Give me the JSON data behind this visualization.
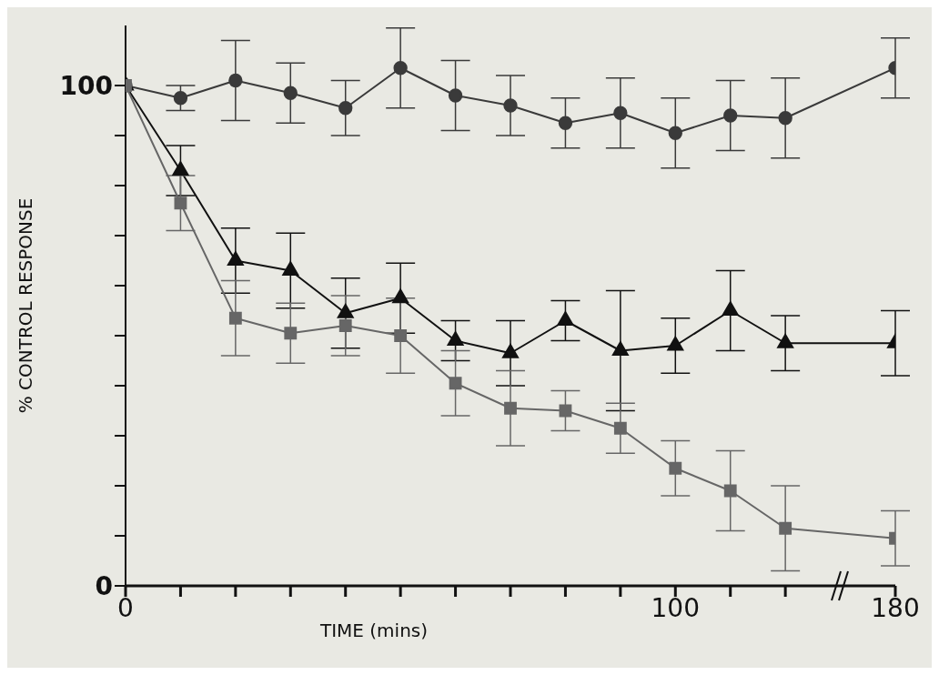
{
  "chart_data": {
    "type": "line",
    "xlabel": "TIME (mins)",
    "ylabel": "% CONTROL RESPONSE",
    "categories": [
      "0",
      null,
      null,
      null,
      null,
      null,
      null,
      null,
      null,
      null,
      "100",
      null,
      null,
      null,
      "180"
    ],
    "ylim": [
      0,
      112
    ],
    "yticks": [
      0,
      {
        "value": 10,
        "label": null
      },
      {
        "value": 20,
        "label": null
      },
      {
        "value": 30,
        "label": null
      },
      {
        "value": 40,
        "label": null
      },
      {
        "value": 50,
        "label": null
      },
      {
        "value": 60,
        "label": null
      },
      {
        "value": 70,
        "label": null
      },
      {
        "value": 80,
        "label": null
      },
      {
        "value": 90,
        "label": null
      },
      100
    ],
    "grid": false,
    "legend": false,
    "line_style": "solid",
    "series": [
      {
        "color": "#3a3a3a",
        "marker": "circle",
        "values": [
          100,
          97.5,
          101,
          98.5,
          95.5,
          103.5,
          98,
          96,
          92.5,
          94.5,
          90.5,
          94,
          93.5,
          null,
          103.5
        ],
        "errors": [
          null,
          2.5,
          8,
          6,
          5.5,
          8,
          7,
          6,
          5,
          7,
          7,
          7,
          8,
          null,
          6
        ]
      },
      {
        "color": "#111111",
        "marker": "triangle",
        "values": [
          100,
          83,
          65,
          63,
          54.5,
          57.5,
          49,
          46.5,
          53,
          47,
          48,
          55,
          48.5,
          null,
          48.5
        ],
        "errors": [
          null,
          5,
          6.5,
          7.5,
          7,
          7,
          4,
          6.5,
          4,
          12,
          5.5,
          8,
          5.5,
          null,
          6.5
        ]
      },
      {
        "color": "#666666",
        "marker": "square",
        "values": [
          100,
          76.5,
          53.5,
          50.5,
          52,
          50,
          40.5,
          35.5,
          35,
          31.5,
          23.5,
          19,
          11.5,
          null,
          9.5
        ],
        "errors": [
          null,
          5.5,
          7.5,
          6,
          6,
          7.5,
          6.5,
          7.5,
          4,
          5,
          5.5,
          8,
          8.5,
          null,
          5.5
        ]
      }
    ]
  }
}
